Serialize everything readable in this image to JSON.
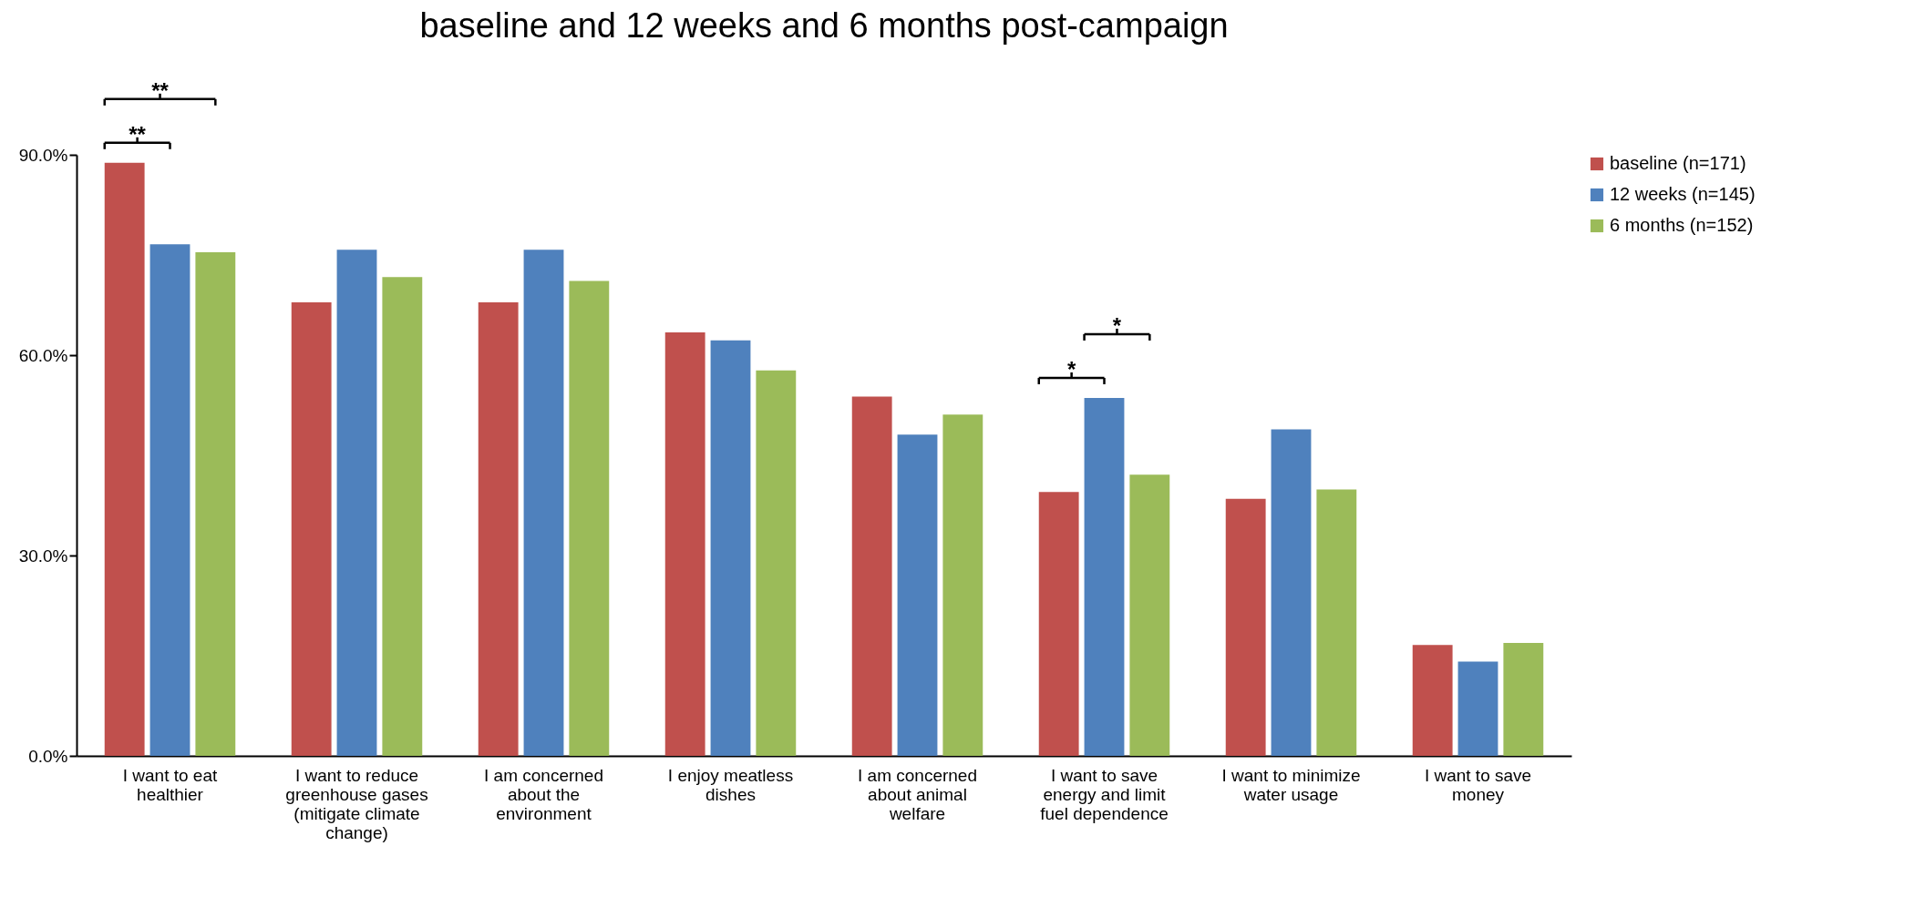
{
  "chart_data": {
    "type": "bar",
    "title": "baseline and 12 weeks and 6 months post-campaign",
    "categories": [
      "I want to eat healthier",
      "I want to reduce greenhouse gases (mitigate climate change)",
      "I am concerned about the environment",
      "I enjoy meatless dishes",
      "I am concerned about animal welfare",
      "I want to save energy and limit fuel dependence",
      "I want to minimize water usage",
      "I want to save money"
    ],
    "series": [
      {
        "name": "baseline (n=171)",
        "color": "#c0504d",
        "values": [
          88.8,
          67.9,
          67.9,
          63.4,
          53.8,
          39.5,
          38.5,
          16.6
        ]
      },
      {
        "name": "12 weeks (n=145)",
        "color": "#4f81bd",
        "values": [
          76.6,
          75.8,
          75.8,
          62.2,
          48.1,
          53.6,
          48.9,
          14.1
        ]
      },
      {
        "name": "6 months (n=152)",
        "color": "#9bbb59",
        "values": [
          75.4,
          71.7,
          71.1,
          57.7,
          51.1,
          42.1,
          39.9,
          16.9
        ]
      }
    ],
    "ylim": [
      0,
      90
    ],
    "yticks": [
      {
        "value": 0,
        "label": "0.0%"
      },
      {
        "value": 30,
        "label": "30.0%"
      },
      {
        "value": 60,
        "label": "60.0%"
      },
      {
        "value": 90,
        "label": "90.0%"
      }
    ],
    "grid": false,
    "legend": "right",
    "annotations": [
      "**",
      "**",
      "*",
      "*"
    ]
  }
}
